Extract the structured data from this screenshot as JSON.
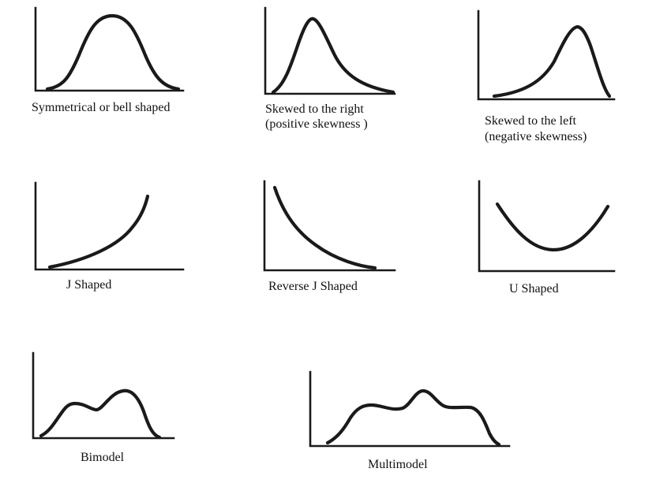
{
  "panels": [
    {
      "id": "symmetrical",
      "caption": [
        "Symmetrical or bell shaped"
      ]
    },
    {
      "id": "skewed-right",
      "caption": [
        "Skewed to the right",
        "(positive skewness )"
      ]
    },
    {
      "id": "skewed-left",
      "caption": [
        "Skewed to the left",
        "(negative skewness)"
      ]
    },
    {
      "id": "j-shaped",
      "caption": [
        "J Shaped"
      ]
    },
    {
      "id": "reverse-j-shaped",
      "caption": [
        "Reverse J Shaped"
      ]
    },
    {
      "id": "u-shaped",
      "caption": [
        "U Shaped"
      ]
    },
    {
      "id": "bimodel",
      "caption": [
        "Bimodel"
      ]
    },
    {
      "id": "multimodel",
      "caption": [
        "Multimodel"
      ]
    }
  ]
}
